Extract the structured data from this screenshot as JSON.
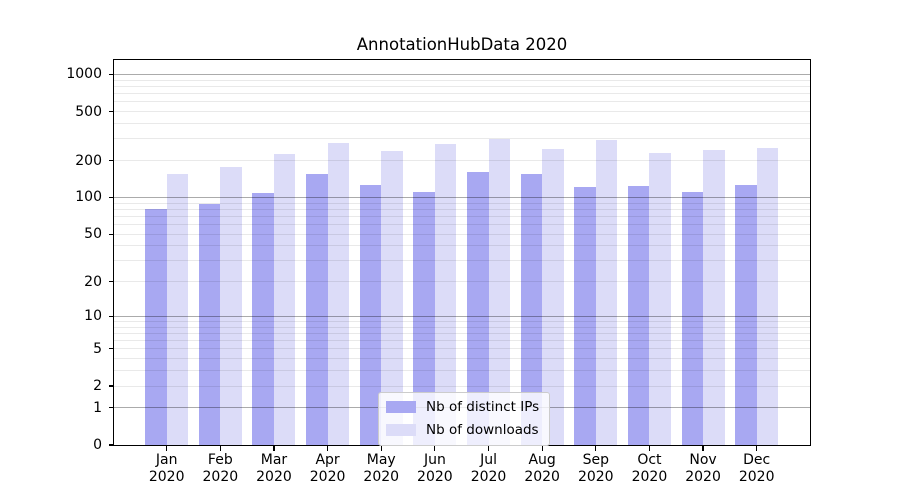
{
  "title": "AnnotationHubData 2020",
  "colors": {
    "ips_bar": "#a8a8f2",
    "downloads_bar": "#dcdcf8",
    "axis": "#000000",
    "text": "#000000",
    "grid_major": "rgba(0,0,0,0.33)",
    "grid_minor": "rgba(0,0,0,0.085)",
    "legend_bg": "rgba(255,255,255,0.8)",
    "legend_border": "#cccccc"
  },
  "chart_data": {
    "type": "bar",
    "title": "AnnotationHubData 2020",
    "categories": [
      "Jan 2020",
      "Feb 2020",
      "Mar 2020",
      "Apr 2020",
      "May 2020",
      "Jun 2020",
      "Jul 2020",
      "Aug 2020",
      "Sep 2020",
      "Oct 2020",
      "Nov 2020",
      "Dec 2020"
    ],
    "series": [
      {
        "name": "Nb of distinct IPs",
        "values": [
          80,
          89,
          108,
          156,
          126,
          110,
          162,
          157,
          122,
          124,
          112,
          126
        ]
      },
      {
        "name": "Nb of downloads",
        "values": [
          155,
          178,
          226,
          279,
          238,
          274,
          299,
          250,
          292,
          229,
          244,
          252
        ]
      }
    ],
    "xlabel": "",
    "ylabel": "",
    "yscale": "log1p",
    "ylim": [
      0,
      1310
    ],
    "yticks": [
      0,
      1,
      2,
      5,
      10,
      20,
      50,
      100,
      200,
      500,
      1000
    ],
    "grid": "on",
    "grid_above_bars": true,
    "legend_position": "bottom-center"
  }
}
